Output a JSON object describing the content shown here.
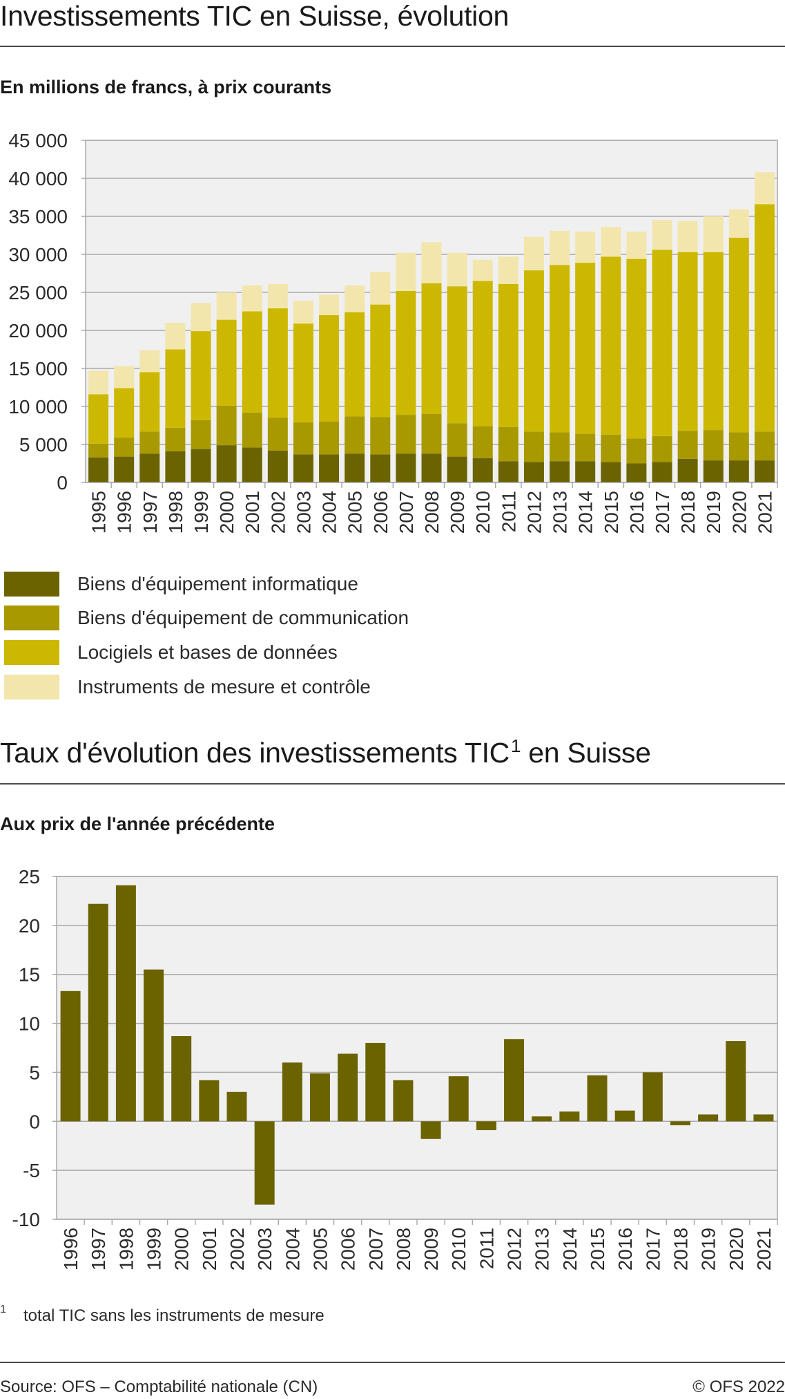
{
  "chart1": {
    "title": "Investissements TIC en Suisse, évolution",
    "subtitle": "En millions de francs, à prix courants"
  },
  "chart2": {
    "title": "Taux d'évolution des investissements TIC",
    "title_sup": "1",
    "title_suffix": " en Suisse",
    "subtitle": "Aux prix de l'année précédente"
  },
  "footnote": {
    "number": "1",
    "text": "total TIC sans les instruments de mesure"
  },
  "source": "Source: OFS – Comptabilité nationale (CN)",
  "copyright": "© OFS 2022",
  "colors": {
    "plot_bg": "#f0f0f0",
    "grid": "#a9a9a9",
    "series": [
      "#6b6300",
      "#a89900",
      "#ccb800",
      "#f3e6ad"
    ]
  },
  "chart_data": [
    {
      "type": "bar",
      "stacked": true,
      "title": "Investissements TIC en Suisse, évolution",
      "subtitle": "En millions de francs, à prix courants",
      "categories": [
        "1995",
        "1996",
        "1997",
        "1998",
        "1999",
        "2000",
        "2001",
        "2002",
        "2003",
        "2004",
        "2005",
        "2006",
        "2007",
        "2008",
        "2009",
        "2010",
        "2011",
        "2012",
        "2013",
        "2014",
        "2015",
        "2016",
        "2017",
        "2018",
        "2019",
        "2020",
        "2021"
      ],
      "ylim": [
        0,
        45000
      ],
      "yticks": [
        0,
        5000,
        10000,
        15000,
        20000,
        25000,
        30000,
        35000,
        40000,
        45000
      ],
      "ytick_labels": [
        "0",
        "5 000",
        "10 000",
        "15 000",
        "20 000",
        "25 000",
        "30 000",
        "35 000",
        "40 000",
        "45 000"
      ],
      "grid": true,
      "legend_position": "bottom",
      "series": [
        {
          "name": "Biens d'équipement informatique",
          "values": [
            3300,
            3400,
            3800,
            4100,
            4400,
            4900,
            4600,
            4200,
            3700,
            3700,
            3800,
            3700,
            3800,
            3800,
            3400,
            3200,
            2800,
            2700,
            2800,
            2800,
            2700,
            2500,
            2700,
            3100,
            2900,
            2900,
            2900
          ]
        },
        {
          "name": "Biens d'équipement de communication",
          "values": [
            1800,
            2500,
            2900,
            3100,
            3800,
            5200,
            4600,
            4300,
            4200,
            4300,
            4900,
            4900,
            5100,
            5200,
            4400,
            4200,
            4500,
            4000,
            3800,
            3600,
            3600,
            3300,
            3400,
            3700,
            4000,
            3700,
            3800
          ]
        },
        {
          "name": "Locigiels et bases de données",
          "values": [
            6500,
            6500,
            7800,
            10300,
            11700,
            11300,
            13300,
            14400,
            13000,
            14000,
            13700,
            14800,
            16300,
            17200,
            18000,
            19100,
            18800,
            21200,
            22000,
            22500,
            23400,
            23600,
            24500,
            23500,
            23400,
            25600,
            29900
          ]
        },
        {
          "name": "Instruments de mesure et contrôle",
          "values": [
            3100,
            2900,
            2900,
            3500,
            3700,
            3600,
            3400,
            3200,
            3000,
            2700,
            3500,
            4300,
            5000,
            5400,
            4400,
            2800,
            3600,
            4400,
            4500,
            4100,
            3900,
            3600,
            3900,
            4100,
            4700,
            3700,
            4200
          ]
        }
      ]
    },
    {
      "type": "bar",
      "title": "Taux d'évolution des investissements TIC 1 en Suisse",
      "subtitle": "Aux prix de l'année précédente",
      "categories": [
        "1996",
        "1997",
        "1998",
        "1999",
        "2000",
        "2001",
        "2002",
        "2003",
        "2004",
        "2005",
        "2006",
        "2007",
        "2008",
        "2009",
        "2010",
        "2011",
        "2012",
        "2013",
        "2014",
        "2015",
        "2016",
        "2017",
        "2018",
        "2019",
        "2020",
        "2021"
      ],
      "values": [
        13.3,
        22.2,
        24.1,
        15.5,
        8.7,
        4.2,
        3.0,
        -8.5,
        6.0,
        4.9,
        6.9,
        8.0,
        4.2,
        -1.8,
        4.6,
        -0.9,
        8.4,
        0.5,
        1.0,
        4.7,
        1.1,
        5.0,
        -0.4,
        0.7,
        8.2,
        0.7
      ],
      "ylim": [
        -10,
        25
      ],
      "yticks": [
        -10,
        -5,
        0,
        5,
        10,
        15,
        20,
        25
      ],
      "ytick_labels": [
        "-10",
        "-5",
        "0",
        "5",
        "10",
        "15",
        "20",
        "25"
      ],
      "grid": true,
      "color": "#6b6300"
    }
  ]
}
